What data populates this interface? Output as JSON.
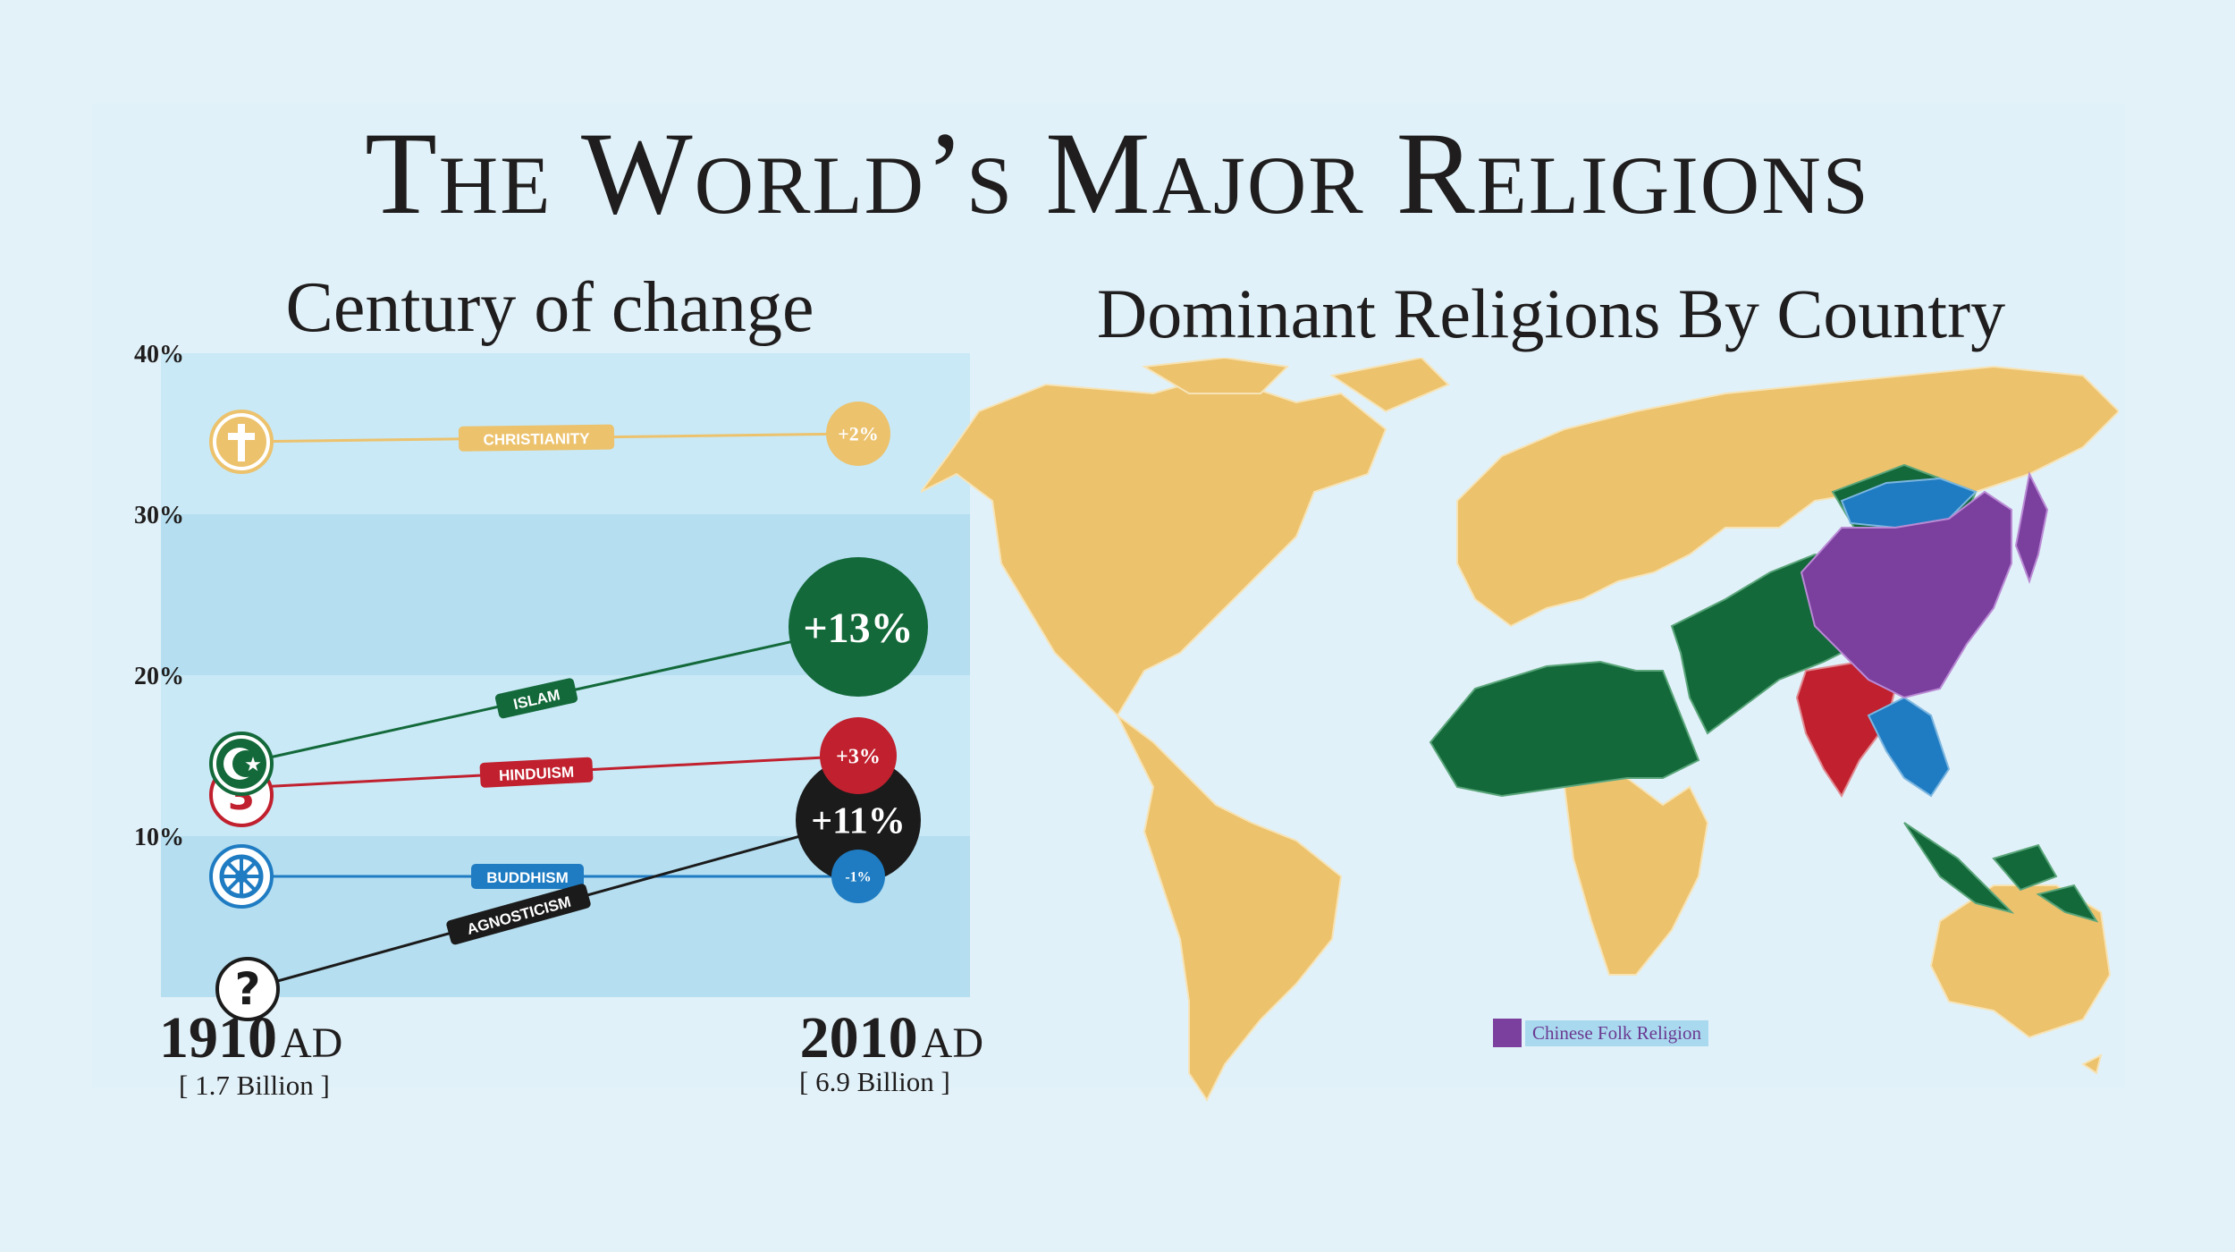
{
  "title": "The World’s Major Religions",
  "chart_title": "Century of change",
  "map_title": "Dominant Religions By Country",
  "colors": {
    "christianity": "#ecc26d",
    "islam": "#13693a",
    "hinduism": "#c1202e",
    "buddhism": "#1f7cc2",
    "agnosticism": "#1b1b1b",
    "folk": "#7b3f9e",
    "band_dark": "#b5def0",
    "band_light": "#c9e9f6"
  },
  "chart_data": {
    "type": "line",
    "title": "Century of change",
    "x": [
      "1910 AD",
      "2010 AD"
    ],
    "ylim": [
      0,
      40
    ],
    "yticks": [
      "40%",
      "30%",
      "20%",
      "10%"
    ],
    "series": [
      {
        "name": "CHRISTIANITY",
        "values": [
          34.5,
          35
        ],
        "change": "+2%",
        "color": "#ecc26d",
        "icon": "cross-icon"
      },
      {
        "name": "ISLAM",
        "values": [
          14.5,
          23
        ],
        "change": "+13%",
        "color": "#13693a",
        "icon": "crescent-star-icon"
      },
      {
        "name": "HINDUISM",
        "values": [
          13,
          15
        ],
        "change": "+3%",
        "color": "#c1202e",
        "icon": "om-icon"
      },
      {
        "name": "BUDDHISM",
        "values": [
          7.5,
          7.5
        ],
        "change": "-1%",
        "color": "#1f7cc2",
        "icon": "dharma-wheel-icon"
      },
      {
        "name": "AGNOSTICISM",
        "values": [
          0.5,
          11
        ],
        "change": "+11%",
        "color": "#1b1b1b",
        "icon": "question-mark-icon"
      }
    ]
  },
  "years": {
    "start": {
      "year": "1910",
      "era": "AD",
      "pop": "[ 1.7 Billion ]"
    },
    "end": {
      "year": "2010",
      "era": "AD",
      "pop": "[ 6.9 Billion ]"
    }
  },
  "map": {
    "legend": [
      {
        "label": "Chinese Folk Religion",
        "color": "#7b3f9e"
      }
    ]
  }
}
